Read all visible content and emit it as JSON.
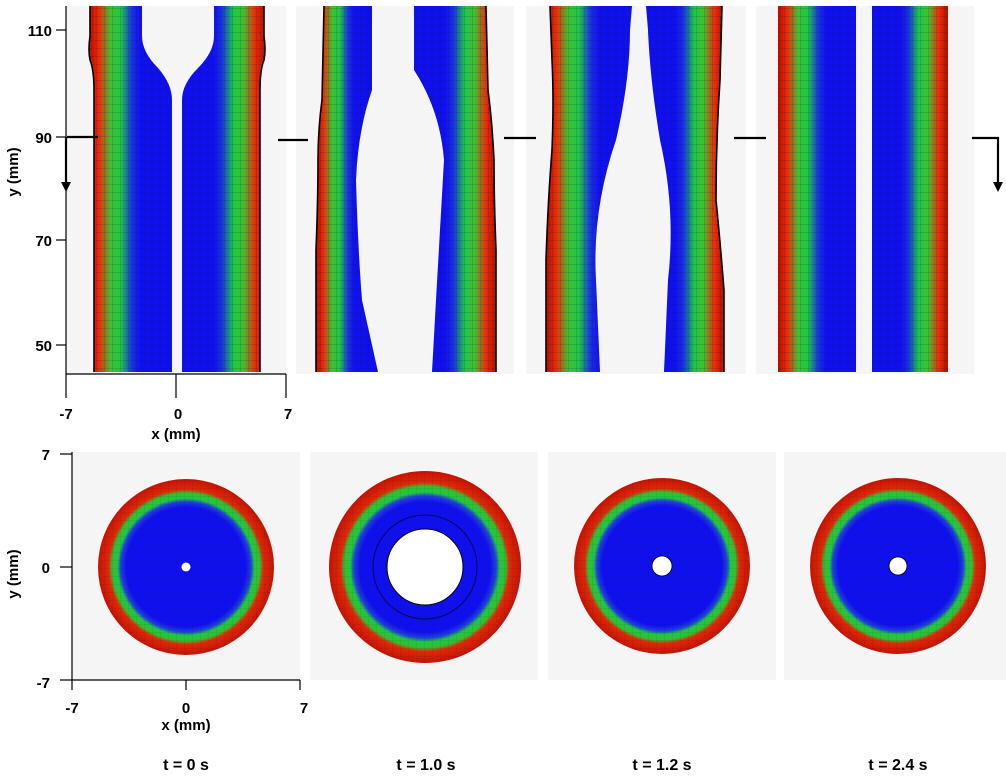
{
  "figure": {
    "top_axes": {
      "ylabel": "y (mm)",
      "xlabel": "x (mm)",
      "yticks": [
        "110",
        "90",
        "70",
        "50"
      ],
      "xticks": [
        "-7",
        "0",
        "7"
      ]
    },
    "bottom_axes": {
      "ylabel": "y (mm)",
      "xlabel": "x (mm)",
      "yticks": [
        "7",
        "0",
        "-7"
      ],
      "xticks": [
        "-7",
        "0",
        "7"
      ]
    },
    "time_labels": [
      "t = 0 s",
      "t = 1.0 s",
      "t = 1.2 s",
      "t = 2.4 s"
    ],
    "colors": {
      "core": "#1010ee",
      "mid": "#20d040",
      "outer": "#dd1808",
      "background": "#f5f5f5",
      "mesh": "#101060"
    }
  }
}
